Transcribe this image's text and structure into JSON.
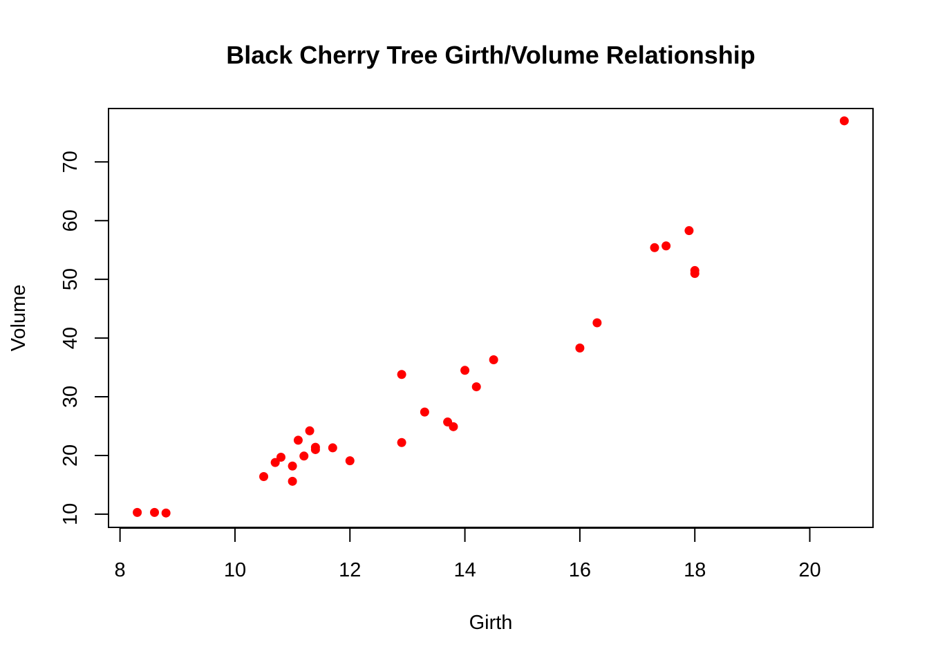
{
  "chart_data": {
    "type": "scatter",
    "title": "Black Cherry Tree Girth/Volume Relationship",
    "xlabel": "Girth",
    "ylabel": "Volume",
    "xlim": [
      7.8,
      21.1
    ],
    "ylim": [
      7.75,
      79.1
    ],
    "x_ticks": [
      8,
      10,
      12,
      14,
      16,
      18,
      20
    ],
    "x_tick_labels": [
      "8",
      "10",
      "12",
      "14",
      "16",
      "18",
      "20"
    ],
    "y_ticks": [
      10,
      20,
      30,
      40,
      50,
      60,
      70
    ],
    "y_tick_labels": [
      "10",
      "20",
      "30",
      "40",
      "50",
      "60",
      "70"
    ],
    "grid": false,
    "legend": "none",
    "point_color": "#ff0000",
    "points": [
      {
        "x": 8.3,
        "y": 10.3
      },
      {
        "x": 8.6,
        "y": 10.3
      },
      {
        "x": 8.8,
        "y": 10.2
      },
      {
        "x": 10.5,
        "y": 16.4
      },
      {
        "x": 10.7,
        "y": 18.8
      },
      {
        "x": 10.8,
        "y": 19.7
      },
      {
        "x": 11.0,
        "y": 15.6
      },
      {
        "x": 11.0,
        "y": 18.2
      },
      {
        "x": 11.1,
        "y": 22.6
      },
      {
        "x": 11.2,
        "y": 19.9
      },
      {
        "x": 11.3,
        "y": 24.2
      },
      {
        "x": 11.4,
        "y": 21.0
      },
      {
        "x": 11.4,
        "y": 21.4
      },
      {
        "x": 11.7,
        "y": 21.3
      },
      {
        "x": 12.0,
        "y": 19.1
      },
      {
        "x": 12.9,
        "y": 22.2
      },
      {
        "x": 12.9,
        "y": 33.8
      },
      {
        "x": 13.3,
        "y": 27.4
      },
      {
        "x": 13.7,
        "y": 25.7
      },
      {
        "x": 13.8,
        "y": 24.9
      },
      {
        "x": 14.0,
        "y": 34.5
      },
      {
        "x": 14.2,
        "y": 31.7
      },
      {
        "x": 14.5,
        "y": 36.3
      },
      {
        "x": 16.0,
        "y": 38.3
      },
      {
        "x": 16.3,
        "y": 42.6
      },
      {
        "x": 17.3,
        "y": 55.4
      },
      {
        "x": 17.5,
        "y": 55.7
      },
      {
        "x": 17.9,
        "y": 58.3
      },
      {
        "x": 18.0,
        "y": 51.5
      },
      {
        "x": 18.0,
        "y": 51.0
      },
      {
        "x": 20.6,
        "y": 77.0
      }
    ]
  }
}
